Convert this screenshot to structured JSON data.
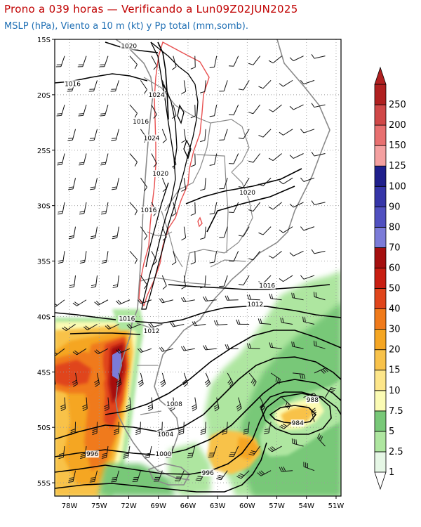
{
  "title": {
    "line1": "Prono a 039 horas — Verificando a Lun09Z02JUN2025",
    "line2": "MSLP (hPa), Viento a 10 m (kt) y Pp total (mm,somb)."
  },
  "map": {
    "lat_labels": [
      "15S",
      "20S",
      "25S",
      "30S",
      "35S",
      "40S",
      "45S",
      "50S",
      "55S"
    ],
    "lon_labels": [
      "78W",
      "75W",
      "72W",
      "69W",
      "66W",
      "63W",
      "60W",
      "57W",
      "54W",
      "51W"
    ],
    "isobar_labels": [
      {
        "text": "1020",
        "lon": -72.8,
        "lat": -15.8
      },
      {
        "text": "1016",
        "lon": -78.5,
        "lat": -19.2
      },
      {
        "text": "1024",
        "lon": -70.0,
        "lat": -20.2
      },
      {
        "text": "1016",
        "lon": -71.6,
        "lat": -22.6
      },
      {
        "text": "1024",
        "lon": -70.5,
        "lat": -24.1
      },
      {
        "text": "1020",
        "lon": -69.6,
        "lat": -27.3
      },
      {
        "text": "1020",
        "lon": -60.8,
        "lat": -29.0
      },
      {
        "text": "1016",
        "lon": -70.8,
        "lat": -30.6
      },
      {
        "text": "1016",
        "lon": -58.8,
        "lat": -37.4
      },
      {
        "text": "1012",
        "lon": -60.0,
        "lat": -39.1
      },
      {
        "text": "1016",
        "lon": -73.0,
        "lat": -40.4
      },
      {
        "text": "1012",
        "lon": -70.5,
        "lat": -41.5
      },
      {
        "text": "1008",
        "lon": -68.2,
        "lat": -48.1
      },
      {
        "text": "988",
        "lon": -54.0,
        "lat": -47.7
      },
      {
        "text": "984",
        "lon": -55.5,
        "lat": -49.8
      },
      {
        "text": "1004",
        "lon": -69.1,
        "lat": -50.8
      },
      {
        "text": "996",
        "lon": -76.3,
        "lat": -52.6
      },
      {
        "text": "1000",
        "lon": -69.3,
        "lat": -52.6
      },
      {
        "text": "996",
        "lon": -64.6,
        "lat": -54.3
      }
    ]
  },
  "colorbar": {
    "labels": [
      "1",
      "2.5",
      "5",
      "7.5",
      "10",
      "15",
      "20",
      "30",
      "40",
      "50",
      "60",
      "70",
      "80",
      "90",
      "100",
      "125",
      "150",
      "200",
      "250"
    ],
    "colors": [
      "#e6f7e6",
      "#aee6a0",
      "#78c878",
      "#fbfbb4",
      "#fde68a",
      "#f8c24a",
      "#f5a623",
      "#f07a1a",
      "#e0451b",
      "#c81e12",
      "#a50f0f",
      "#7b7bd8",
      "#5050c0",
      "#3535a8",
      "#1f1f8c",
      "#f4a0a0",
      "#e87070",
      "#d04848",
      "#b02020"
    ]
  },
  "legend": {
    "unit": "mm"
  }
}
